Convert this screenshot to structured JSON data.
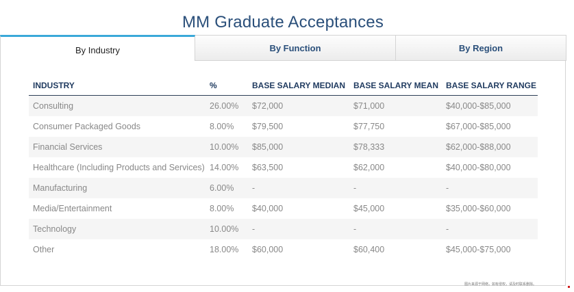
{
  "page_title": "MM Graduate Acceptances",
  "tabs": [
    {
      "label": "By Industry",
      "active": true
    },
    {
      "label": "By Function",
      "active": false
    },
    {
      "label": "By Region",
      "active": false
    }
  ],
  "table": {
    "headers": [
      "INDUSTRY",
      "%",
      "BASE SALARY MEDIAN",
      "BASE SALARY MEAN",
      "BASE SALARY RANGE"
    ],
    "rows": [
      [
        "Consulting",
        "26.00%",
        "$72,000",
        "$71,000",
        "$40,000-$85,000"
      ],
      [
        "Consumer Packaged Goods",
        "8.00%",
        "$79,500",
        "$77,750",
        "$67,000-$85,000"
      ],
      [
        "Financial Services",
        "10.00%",
        "$85,000",
        "$78,333",
        "$62,000-$88,000"
      ],
      [
        "Healthcare (Including Products and Services)",
        "14.00%",
        "$63,500",
        "$62,000",
        "$40,000-$80,000"
      ],
      [
        "Manufacturing",
        "6.00%",
        "-",
        "-",
        "-"
      ],
      [
        "Media/Entertainment",
        "8.00%",
        "$40,000",
        "$45,000",
        "$35,000-$60,000"
      ],
      [
        "Technology",
        "10.00%",
        "-",
        "-",
        "-"
      ],
      [
        "Other",
        "18.00%",
        "$60,000",
        "$60,400",
        "$45,000-$75,000"
      ]
    ]
  },
  "footnote": "图片来源于网络，如有侵权，请及时联系删除。",
  "colors": {
    "title": "#2a4f7a",
    "active_tab_accent": "#3aa8d8",
    "header_text": "#1f3a5f",
    "cell_text": "#888888",
    "stripe": "#f5f5f5"
  }
}
